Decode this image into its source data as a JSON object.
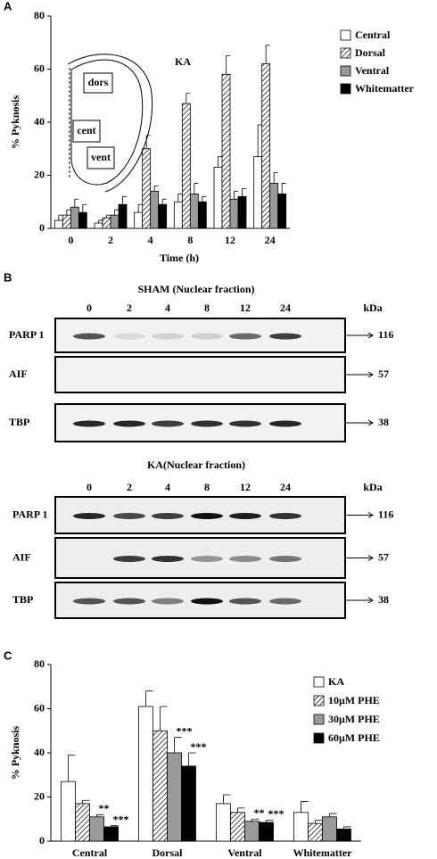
{
  "panels": [
    "A",
    "B",
    "C"
  ],
  "chart_data": [
    {
      "type": "bar",
      "title": "KA",
      "ylabel": "% Pyknosis",
      "xlabel": "Time (h)",
      "categories": [
        "0",
        "2",
        "4",
        "8",
        "12",
        "24"
      ],
      "ylim": [
        0,
        80
      ],
      "yticks": [
        0,
        20,
        40,
        60,
        80
      ],
      "inset": [
        "dors",
        "cent",
        "vent"
      ],
      "series": [
        {
          "name": "Central",
          "color": "#ffffff",
          "values": [
            3,
            2,
            6,
            10,
            23,
            27
          ],
          "errors": [
            2,
            1,
            3,
            3,
            4,
            12
          ]
        },
        {
          "name": "Dorsal",
          "color": "hatch",
          "values": [
            5,
            4,
            30,
            47,
            58,
            62
          ],
          "errors": [
            2,
            1,
            5,
            4,
            7,
            7
          ]
        },
        {
          "name": "Ventral",
          "color": "#9a9a9a",
          "values": [
            8,
            5,
            14,
            13,
            11,
            17
          ],
          "errors": [
            3,
            2,
            2,
            4,
            3,
            4
          ]
        },
        {
          "name": "Whitematter",
          "color": "#000000",
          "values": [
            6,
            9,
            9,
            10,
            12,
            13
          ],
          "errors": [
            3,
            3,
            2,
            2,
            3,
            4
          ]
        }
      ]
    },
    {
      "type": "bar",
      "ylabel": "% Pyknosis",
      "categories": [
        "Central",
        "Dorsal",
        "Ventral",
        "Whitematter"
      ],
      "ylim": [
        0,
        80
      ],
      "yticks": [
        0,
        20,
        40,
        60,
        80
      ],
      "series": [
        {
          "name": "KA",
          "color": "#ffffff",
          "values": [
            27,
            61,
            17,
            13
          ],
          "errors": [
            12,
            7,
            4,
            5
          ]
        },
        {
          "name": "10μM PHE",
          "color": "hatch",
          "values": [
            17,
            50,
            13,
            8
          ],
          "errors": [
            1.5,
            11,
            2,
            1.5
          ]
        },
        {
          "name": "30μM PHE",
          "color": "#9a9a9a",
          "values": [
            11,
            40,
            9,
            11
          ],
          "errors": [
            1,
            7,
            1,
            1.5
          ]
        },
        {
          "name": "60μM PHE",
          "color": "#000000",
          "values": [
            6.5,
            34,
            8.5,
            5.5
          ],
          "errors": [
            0.5,
            6,
            1,
            1
          ]
        }
      ],
      "annotations": [
        {
          "text": "**",
          "series": 2,
          "category": 0
        },
        {
          "text": "***",
          "series": 3,
          "category": 0
        },
        {
          "text": "***",
          "series": 2,
          "category": 1
        },
        {
          "text": "***",
          "series": 3,
          "category": 1
        },
        {
          "text": "**",
          "series": 2,
          "category": 2
        },
        {
          "text": "***",
          "series": 3,
          "category": 2
        }
      ]
    }
  ],
  "blot": {
    "unit": "kDa",
    "lanes": [
      "0",
      "2",
      "4",
      "8",
      "12",
      "24"
    ],
    "rows": [
      "PARP 1",
      "AIF",
      "TBP"
    ],
    "markers": [
      "116",
      "57",
      "38"
    ],
    "panels": [
      "SHAM (Nuclear fraction)",
      "KA(Nuclear fraction)"
    ]
  }
}
